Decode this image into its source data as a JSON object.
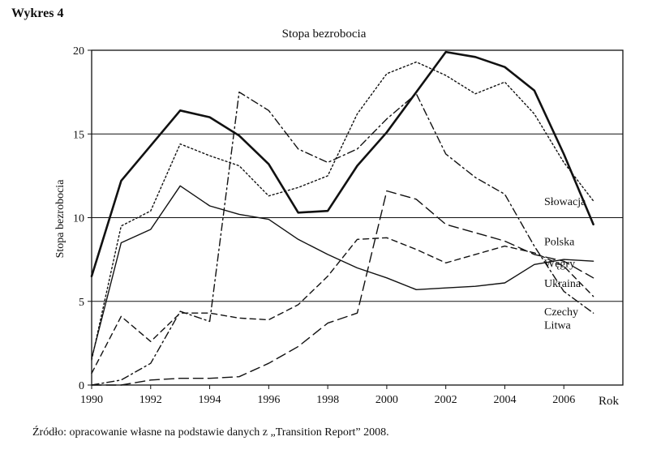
{
  "heading": "Wykres 4",
  "source": "Źródło: opracowanie własne na podstawie danych z „Transition Report” 2008.",
  "chart_data": {
    "type": "line",
    "title": "Stopa bezrobocia",
    "ylabel": "Stopa bezrobocia",
    "xlabel": "Rok",
    "xlim": [
      1990,
      2008
    ],
    "ylim": [
      0,
      20
    ],
    "x_ticks": [
      1990,
      1992,
      1994,
      1996,
      1998,
      2000,
      2002,
      2004,
      2006
    ],
    "y_ticks": [
      0,
      5,
      10,
      15,
      20
    ],
    "grid": "horizontal",
    "series": [
      {
        "name": "Słowacja",
        "style": "dotted",
        "points": [
          [
            1990,
            1.5
          ],
          [
            1991,
            9.5
          ],
          [
            1992,
            10.4
          ],
          [
            1993,
            14.4
          ],
          [
            1994,
            13.7
          ],
          [
            1995,
            13.1
          ],
          [
            1996,
            11.3
          ],
          [
            1997,
            11.8
          ],
          [
            1998,
            12.5
          ],
          [
            1999,
            16.2
          ],
          [
            2000,
            18.6
          ],
          [
            2001,
            19.3
          ],
          [
            2002,
            18.5
          ],
          [
            2003,
            17.4
          ],
          [
            2004,
            18.1
          ],
          [
            2005,
            16.2
          ],
          [
            2006,
            13.3
          ],
          [
            2007,
            11.0
          ]
        ]
      },
      {
        "name": "Polska",
        "style": "solid-thick",
        "points": [
          [
            1990,
            6.5
          ],
          [
            1991,
            12.2
          ],
          [
            1992,
            14.3
          ],
          [
            1993,
            16.4
          ],
          [
            1994,
            16.0
          ],
          [
            1995,
            14.9
          ],
          [
            1996,
            13.2
          ],
          [
            1997,
            10.3
          ],
          [
            1998,
            10.4
          ],
          [
            1999,
            13.1
          ],
          [
            2000,
            15.1
          ],
          [
            2001,
            17.5
          ],
          [
            2002,
            19.9
          ],
          [
            2003,
            19.6
          ],
          [
            2004,
            19.0
          ],
          [
            2005,
            17.6
          ],
          [
            2006,
            13.8
          ],
          [
            2007,
            9.6
          ]
        ]
      },
      {
        "name": "Węgry",
        "style": "solid",
        "points": [
          [
            1990,
            1.6
          ],
          [
            1991,
            8.5
          ],
          [
            1992,
            9.3
          ],
          [
            1993,
            11.9
          ],
          [
            1994,
            10.7
          ],
          [
            1995,
            10.2
          ],
          [
            1996,
            9.9
          ],
          [
            1997,
            8.7
          ],
          [
            1998,
            7.8
          ],
          [
            1999,
            7.0
          ],
          [
            2000,
            6.4
          ],
          [
            2001,
            5.7
          ],
          [
            2002,
            5.8
          ],
          [
            2003,
            5.9
          ],
          [
            2004,
            6.1
          ],
          [
            2005,
            7.2
          ],
          [
            2006,
            7.5
          ],
          [
            2007,
            7.4
          ]
        ]
      },
      {
        "name": "Ukraina",
        "style": "long-dash",
        "points": [
          [
            1990,
            0.0
          ],
          [
            1991,
            0.0
          ],
          [
            1992,
            0.3
          ],
          [
            1993,
            0.4
          ],
          [
            1994,
            0.4
          ],
          [
            1995,
            0.5
          ],
          [
            1996,
            1.3
          ],
          [
            1997,
            2.3
          ],
          [
            1998,
            3.7
          ],
          [
            1999,
            4.3
          ],
          [
            2000,
            11.6
          ],
          [
            2001,
            11.1
          ],
          [
            2002,
            9.6
          ],
          [
            2003,
            9.1
          ],
          [
            2004,
            8.6
          ],
          [
            2005,
            7.8
          ],
          [
            2006,
            7.4
          ],
          [
            2007,
            6.4
          ]
        ]
      },
      {
        "name": "Czechy",
        "style": "dashed",
        "points": [
          [
            1990,
            0.7
          ],
          [
            1991,
            4.1
          ],
          [
            1992,
            2.6
          ],
          [
            1993,
            4.3
          ],
          [
            1994,
            4.3
          ],
          [
            1995,
            4.0
          ],
          [
            1996,
            3.9
          ],
          [
            1997,
            4.8
          ],
          [
            1998,
            6.5
          ],
          [
            1999,
            8.7
          ],
          [
            2000,
            8.8
          ],
          [
            2001,
            8.1
          ],
          [
            2002,
            7.3
          ],
          [
            2003,
            7.8
          ],
          [
            2004,
            8.3
          ],
          [
            2005,
            7.9
          ],
          [
            2006,
            7.1
          ],
          [
            2007,
            5.3
          ]
        ]
      },
      {
        "name": "Litwa",
        "style": "dash-dot",
        "points": [
          [
            1990,
            0.0
          ],
          [
            1991,
            0.3
          ],
          [
            1992,
            1.3
          ],
          [
            1993,
            4.4
          ],
          [
            1994,
            3.8
          ],
          [
            1995,
            17.5
          ],
          [
            1996,
            16.4
          ],
          [
            1997,
            14.1
          ],
          [
            1998,
            13.3
          ],
          [
            1999,
            14.1
          ],
          [
            2000,
            15.9
          ],
          [
            2001,
            17.4
          ],
          [
            2002,
            13.8
          ],
          [
            2003,
            12.4
          ],
          [
            2004,
            11.4
          ],
          [
            2005,
            8.3
          ],
          [
            2006,
            5.6
          ],
          [
            2007,
            4.3
          ]
        ]
      }
    ]
  }
}
